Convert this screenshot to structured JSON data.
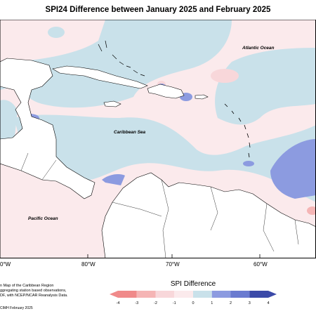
{
  "title": "SPI24 Difference between January 2025 and February 2025",
  "labels": {
    "atlantic": "Atlantic Ocean",
    "caribbean": "Caribbean Sea",
    "pacific": "Pacific Ocean"
  },
  "longitudes": [
    "80°W",
    "70°W",
    "60°W"
  ],
  "longitude_edge": "0°W",
  "notes": {
    "line1": "n Map of the Caribbean Region",
    "line2": "ggregating station based observations,",
    "line3": "DF, with NCEP/NCAR Reanalysis Data.",
    "credit": "CIMH February 2025"
  },
  "legend": {
    "title": "SPI Difference",
    "ticks": [
      "-4",
      "-3",
      "-2",
      "-1",
      "0",
      "1",
      "2",
      "3",
      "4"
    ],
    "colors": [
      "#f08a8a",
      "#f5b5b5",
      "#f8d7da",
      "#fbeaec",
      "#ffffff",
      "#c9e1ea",
      "#8c9be0",
      "#6a7bd0",
      "#3b4aa8"
    ]
  }
}
